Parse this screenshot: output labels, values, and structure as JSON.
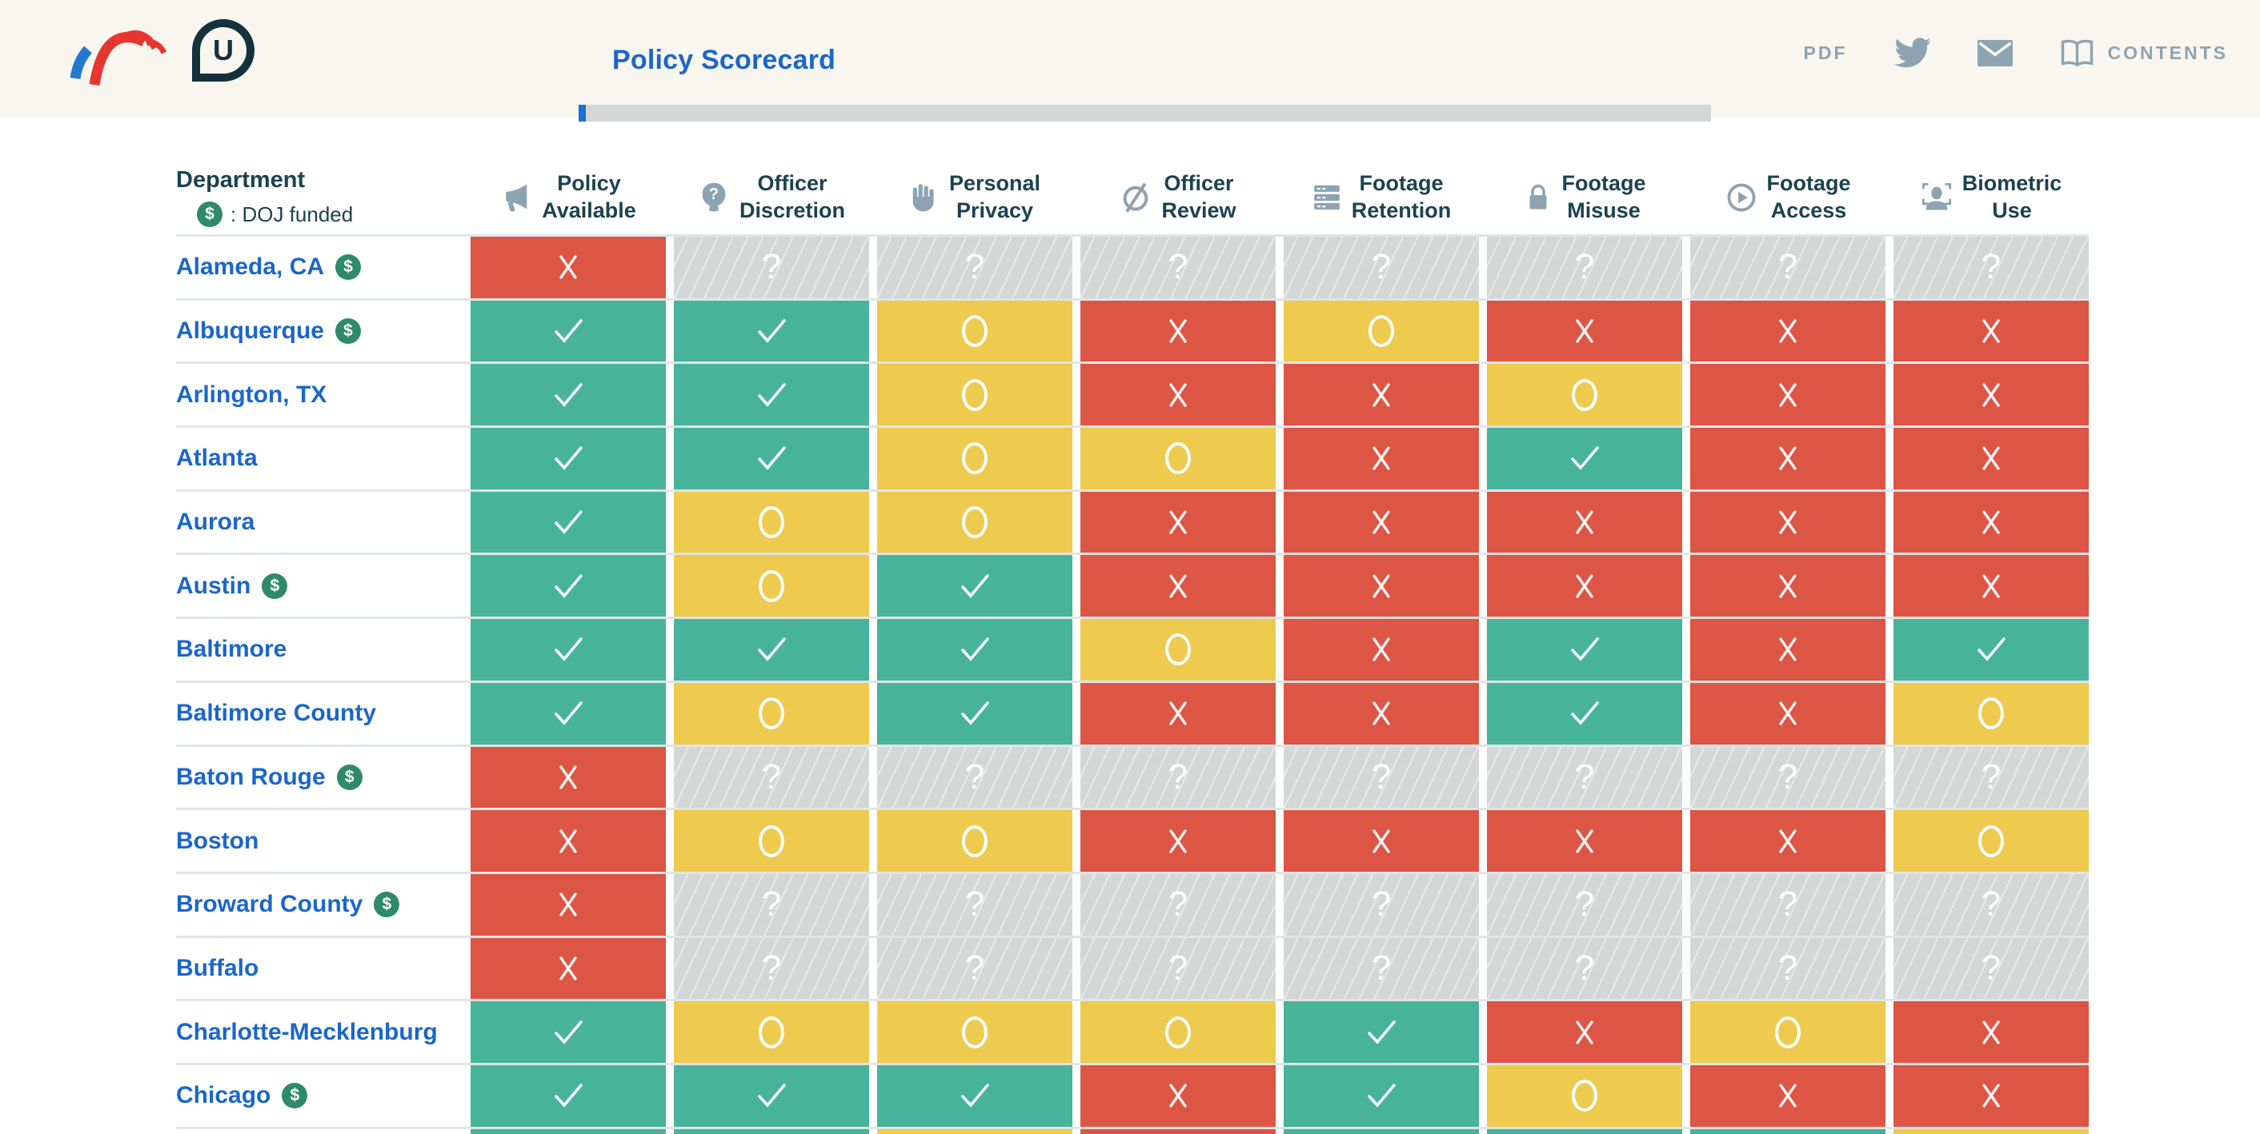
{
  "header": {
    "logos": [
      {
        "icon": "leadership-conference-logo"
      },
      {
        "icon": "upturn-logo",
        "letter": "U"
      }
    ],
    "title": "Policy Scorecard",
    "actions": {
      "pdf_label": "PDF",
      "twitter_icon": "twitter-icon",
      "email_icon": "envelope-icon",
      "contents_icon": "book-icon",
      "contents_label": "CONTENTS"
    }
  },
  "table": {
    "department_header": "Department",
    "doj_symbol": "$",
    "doj_funded_note": ": DOJ funded",
    "columns": [
      {
        "icon": "megaphone-icon",
        "label": "Policy\nAvailable"
      },
      {
        "icon": "head-question-icon",
        "label": "Officer\nDiscretion"
      },
      {
        "icon": "hand-icon",
        "label": "Personal\nPrivacy"
      },
      {
        "icon": "eye-slash-icon",
        "label": "Officer\nReview"
      },
      {
        "icon": "server-stack-icon",
        "label": "Footage\nRetention"
      },
      {
        "icon": "lock-icon",
        "label": "Footage\nMisuse"
      },
      {
        "icon": "play-circle-icon",
        "label": "Footage\nAccess"
      },
      {
        "icon": "face-scan-icon",
        "label": "Biometric\nUse"
      }
    ],
    "legend_symbols": {
      "check": "✓",
      "x": "✕",
      "circle": "○",
      "unknown": "?"
    },
    "rows": [
      {
        "name": "Alameda, CA",
        "doj_funded": true,
        "statuses": [
          "x",
          "unknown",
          "unknown",
          "unknown",
          "unknown",
          "unknown",
          "unknown",
          "unknown"
        ]
      },
      {
        "name": "Albuquerque",
        "doj_funded": true,
        "statuses": [
          "check",
          "check",
          "circle",
          "x",
          "circle",
          "x",
          "x",
          "x"
        ]
      },
      {
        "name": "Arlington, TX",
        "doj_funded": false,
        "statuses": [
          "check",
          "check",
          "circle",
          "x",
          "x",
          "circle",
          "x",
          "x"
        ]
      },
      {
        "name": "Atlanta",
        "doj_funded": false,
        "statuses": [
          "check",
          "check",
          "circle",
          "circle",
          "x",
          "check",
          "x",
          "x"
        ]
      },
      {
        "name": "Aurora",
        "doj_funded": false,
        "statuses": [
          "check",
          "circle",
          "circle",
          "x",
          "x",
          "x",
          "x",
          "x"
        ]
      },
      {
        "name": "Austin",
        "doj_funded": true,
        "statuses": [
          "check",
          "circle",
          "check",
          "x",
          "x",
          "x",
          "x",
          "x"
        ]
      },
      {
        "name": "Baltimore",
        "doj_funded": false,
        "statuses": [
          "check",
          "check",
          "check",
          "circle",
          "x",
          "check",
          "x",
          "check"
        ]
      },
      {
        "name": "Baltimore County",
        "doj_funded": false,
        "statuses": [
          "check",
          "circle",
          "check",
          "x",
          "x",
          "check",
          "x",
          "circle"
        ]
      },
      {
        "name": "Baton Rouge",
        "doj_funded": true,
        "statuses": [
          "x",
          "unknown",
          "unknown",
          "unknown",
          "unknown",
          "unknown",
          "unknown",
          "unknown"
        ]
      },
      {
        "name": "Boston",
        "doj_funded": false,
        "statuses": [
          "x",
          "circle",
          "circle",
          "x",
          "x",
          "x",
          "x",
          "circle"
        ]
      },
      {
        "name": "Broward County",
        "doj_funded": true,
        "statuses": [
          "x",
          "unknown",
          "unknown",
          "unknown",
          "unknown",
          "unknown",
          "unknown",
          "unknown"
        ]
      },
      {
        "name": "Buffalo",
        "doj_funded": false,
        "statuses": [
          "x",
          "unknown",
          "unknown",
          "unknown",
          "unknown",
          "unknown",
          "unknown",
          "unknown"
        ]
      },
      {
        "name": "Charlotte-Mecklenburg",
        "doj_funded": false,
        "statuses": [
          "check",
          "circle",
          "circle",
          "circle",
          "check",
          "x",
          "circle",
          "x"
        ]
      },
      {
        "name": "Chicago",
        "doj_funded": true,
        "statuses": [
          "check",
          "check",
          "check",
          "x",
          "check",
          "circle",
          "x",
          "x"
        ]
      }
    ],
    "partial_next_row": [
      "check",
      "check",
      "circle",
      "x",
      "check",
      "check",
      "check",
      "circle"
    ]
  },
  "colors": {
    "topbar_bg": "#f8f6ee",
    "link_blue": "#1b66c9",
    "heading_dark": "#1c4250",
    "slate_icon": "#8da3b2",
    "status_check": "#47b39b",
    "status_x": "#dc5545",
    "status_circle": "#eeca4f",
    "status_unknown": "#d3d8d6",
    "row_line": "#e0e5e5",
    "doj_green": "#2e8a68",
    "scroll_thumb": "#1f6fd0"
  }
}
